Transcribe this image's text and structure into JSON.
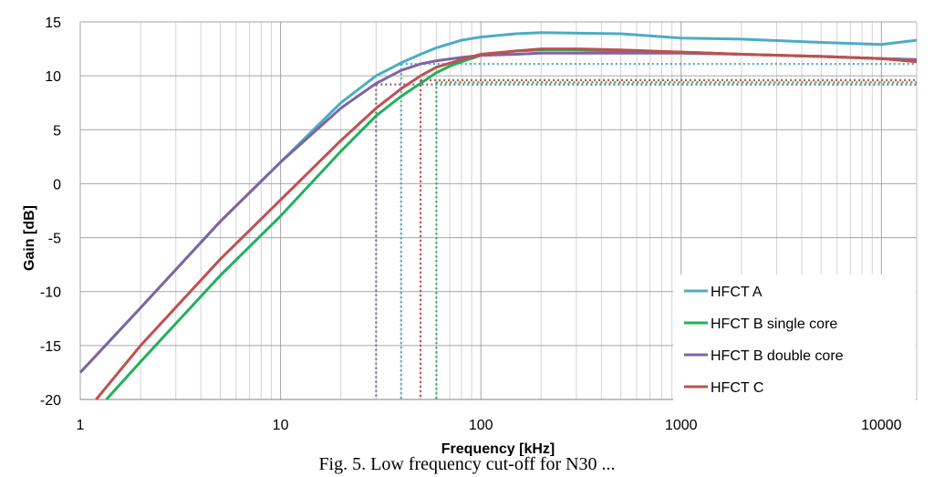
{
  "caption": "Fig. 5. Low frequency cut-off for N30 ...",
  "chart_data": {
    "type": "line",
    "xlabel": "Frequency [kHz]",
    "ylabel": "Gain [dB]",
    "x_scale": "log",
    "xlim": [
      1,
      15000
    ],
    "ylim": [
      -20,
      15
    ],
    "x_ticks": [
      1,
      10,
      100,
      1000,
      10000
    ],
    "x_tick_labels": [
      "1",
      "10",
      "100",
      "1000",
      "10000"
    ],
    "y_ticks": [
      15,
      10,
      5,
      0,
      -5,
      -10,
      -15,
      -20
    ],
    "y_tick_labels": [
      "15",
      "10",
      "5",
      "0",
      "-5",
      "-10",
      "-15",
      "-20"
    ],
    "grid": true,
    "legend_position": "bottom-right",
    "series": [
      {
        "name": "HFCT A",
        "color": "#4bacc6",
        "x": [
          1,
          2,
          5,
          10,
          20,
          30,
          40,
          50,
          60,
          80,
          100,
          150,
          200,
          500,
          1000,
          2000,
          5000,
          10000,
          15000
        ],
        "y": [
          -17.5,
          -11.5,
          -3.5,
          2,
          7.5,
          10,
          11.2,
          12,
          12.6,
          13.3,
          13.6,
          13.9,
          14,
          13.9,
          13.5,
          13.4,
          13.1,
          12.9,
          13.3
        ]
      },
      {
        "name": "HFCT B single core",
        "color": "#1fb15a",
        "x": [
          1.35,
          2,
          5,
          10,
          20,
          30,
          40,
          50,
          60,
          70,
          80,
          100,
          150,
          200,
          300,
          500,
          1000,
          2000,
          5000,
          10000,
          15000
        ],
        "y": [
          -20,
          -16.5,
          -8.5,
          -3,
          3,
          6.3,
          8.1,
          9.3,
          10.3,
          10.9,
          11.3,
          11.9,
          12.3,
          12.4,
          12.4,
          12.3,
          12.2,
          12,
          11.8,
          11.6,
          11.5
        ]
      },
      {
        "name": "HFCT B double core",
        "color": "#8064a2",
        "x": [
          1,
          2,
          5,
          10,
          20,
          30,
          40,
          50,
          60,
          80,
          100,
          150,
          200,
          500,
          1000,
          2000,
          5000,
          10000,
          15000
        ],
        "y": [
          -17.5,
          -11.5,
          -3.5,
          2,
          7,
          9.3,
          10.5,
          11.1,
          11.4,
          11.7,
          11.9,
          12,
          12.1,
          12.1,
          12.1,
          12,
          11.8,
          11.6,
          11.5
        ]
      },
      {
        "name": "HFCT C",
        "color": "#c0504d",
        "x": [
          1.2,
          2,
          5,
          10,
          20,
          30,
          40,
          50,
          60,
          80,
          100,
          150,
          200,
          300,
          500,
          1000,
          2000,
          5000,
          10000,
          15000
        ],
        "y": [
          -20,
          -15,
          -7,
          -1.5,
          4,
          7,
          8.8,
          10,
          10.8,
          11.5,
          12,
          12.3,
          12.5,
          12.5,
          12.4,
          12.2,
          12,
          11.8,
          11.6,
          11.3
        ]
      }
    ],
    "cutoff_markers": [
      {
        "color": "#8064a2",
        "x": 30,
        "y": 9.2
      },
      {
        "color": "#4bacc6",
        "x": 40,
        "y": 11.1
      },
      {
        "color": "#c0504d",
        "x": 50,
        "y": 9.6
      },
      {
        "color": "#1fb15a",
        "x": 60,
        "y": 9.4
      }
    ]
  }
}
